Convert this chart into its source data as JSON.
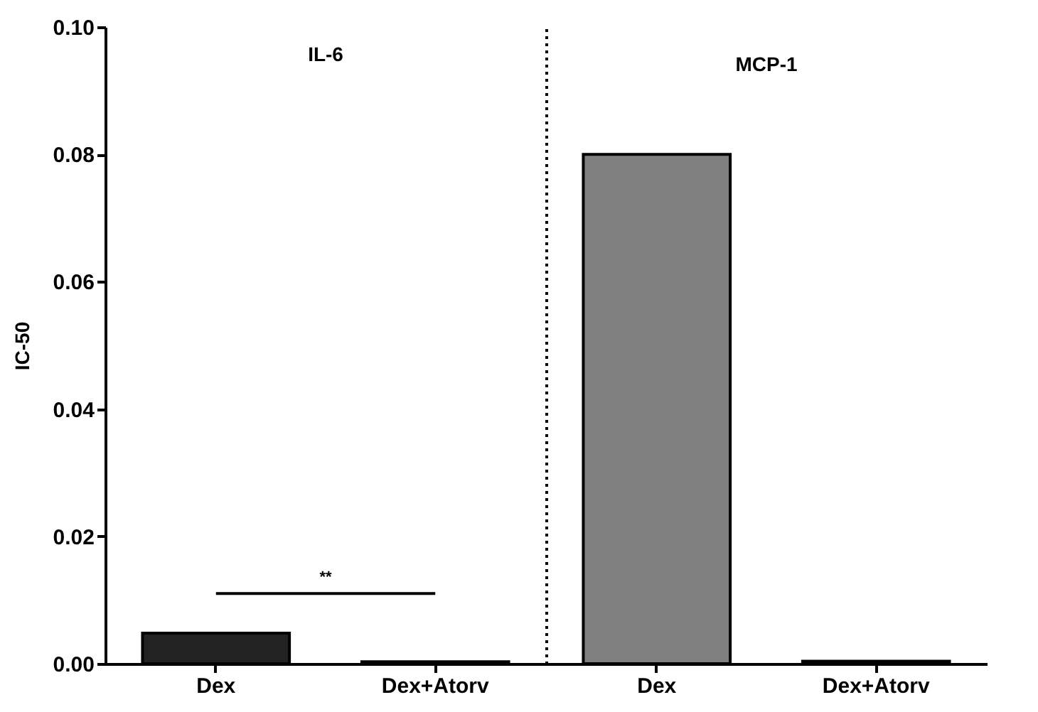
{
  "chart_data": [
    {
      "type": "bar",
      "title": "IL-6",
      "ylabel": "IC-50",
      "categories": [
        "Dex",
        "Dex+Atorv"
      ],
      "values": [
        0.0048,
        0.0003
      ],
      "colors": [
        "#222222",
        "#1a1a1a"
      ],
      "errors": [
        0.0002,
        null
      ],
      "annotations": [
        "**"
      ],
      "ylim": [
        0,
        0.1
      ],
      "yticks": [
        {
          "value": 0,
          "label": "0.00"
        },
        {
          "value": 0.02,
          "label": "0.02"
        },
        {
          "value": 0.04,
          "label": "0.04"
        },
        {
          "value": 0.06,
          "label": "0.06"
        },
        {
          "value": 0.08,
          "label": "0.08"
        },
        {
          "value": 0.1,
          "label": "0.10"
        }
      ],
      "grid": false
    },
    {
      "type": "bar",
      "title": "MCP-1",
      "categories": [
        "Dex",
        "Dex+Atorv"
      ],
      "values": [
        0.08,
        0.0004
      ],
      "colors": [
        "#808080",
        "#808080"
      ],
      "ylim": [
        0,
        0.1
      ],
      "tick_labels": "x",
      "grid": false
    }
  ]
}
